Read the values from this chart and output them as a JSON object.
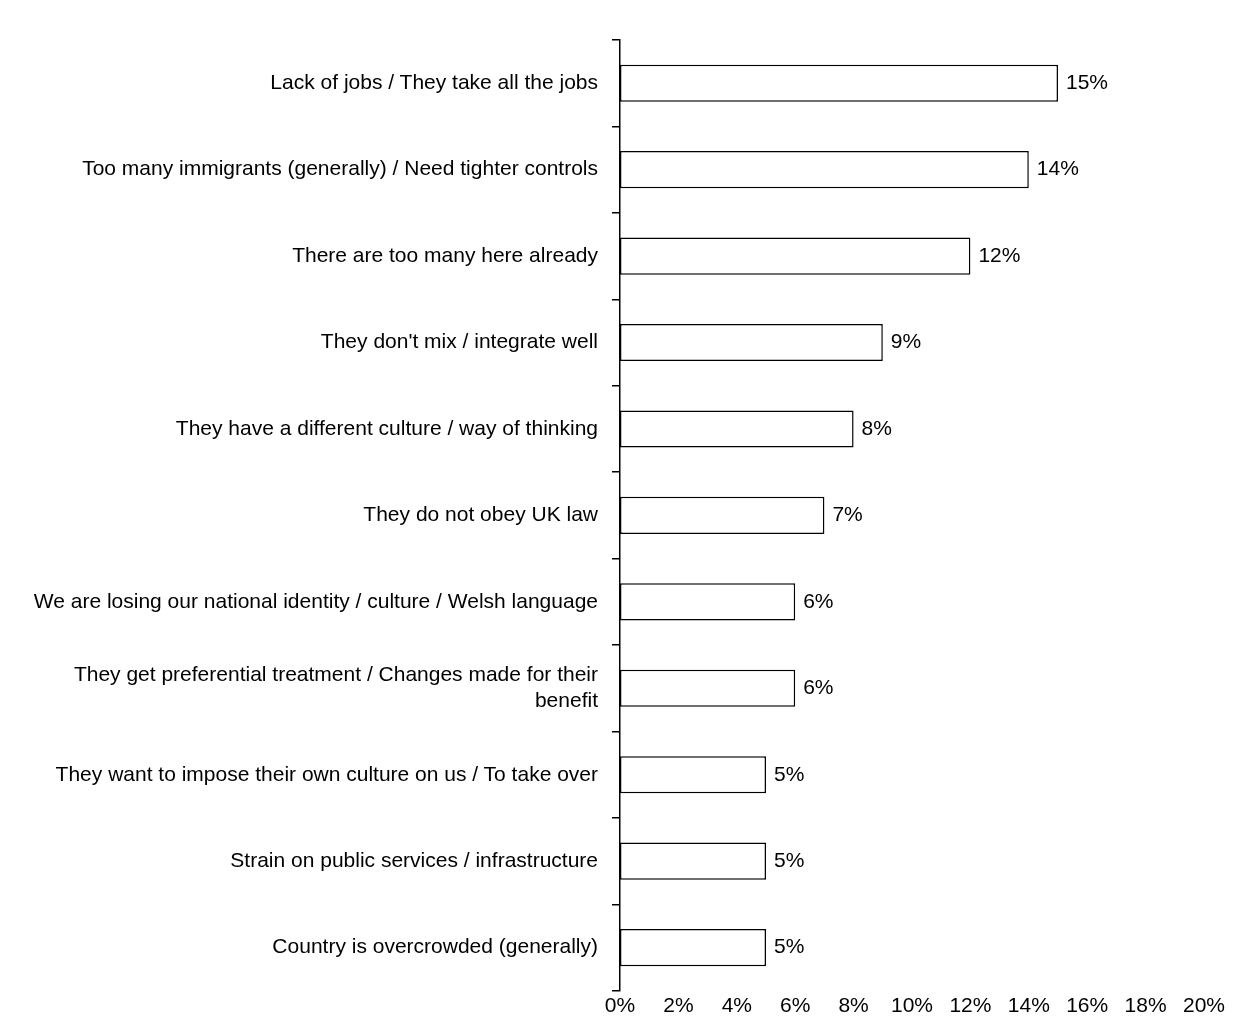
{
  "chart_data": {
    "type": "bar",
    "orientation": "horizontal",
    "categories": [
      "Lack of jobs / They take all the jobs",
      "Too many immigrants (generally) / Need tighter controls",
      "There are too many here already",
      "They don't mix / integrate well",
      "They have a different culture / way of thinking",
      "They do not obey UK law",
      "We are losing our national identity / culture / Welsh language",
      "They get preferential treatment / Changes made for their benefit",
      "They want to impose their own culture on us / To take over",
      "Strain on public services / infrastructure",
      "Country is overcrowded (generally)"
    ],
    "values": [
      15,
      14,
      12,
      9,
      8,
      7,
      6,
      6,
      5,
      5,
      5
    ],
    "value_labels": [
      "15%",
      "14%",
      "12%",
      "9%",
      "8%",
      "7%",
      "6%",
      "6%",
      "5%",
      "5%",
      "5%"
    ],
    "color": "#ffffff",
    "xlim": [
      0,
      20
    ],
    "xticks": [
      {
        "value": 0,
        "label": "0%"
      },
      {
        "value": 2,
        "label": "2%"
      },
      {
        "value": 4,
        "label": "4%"
      },
      {
        "value": 6,
        "label": "6%"
      },
      {
        "value": 8,
        "label": "8%"
      },
      {
        "value": 10,
        "label": "10%"
      },
      {
        "value": 12,
        "label": "12%"
      },
      {
        "value": 14,
        "label": "14%"
      },
      {
        "value": 16,
        "label": "16%"
      },
      {
        "value": 18,
        "label": "18%"
      },
      {
        "value": 20,
        "label": "20%"
      }
    ],
    "grid": false,
    "legend": false
  }
}
